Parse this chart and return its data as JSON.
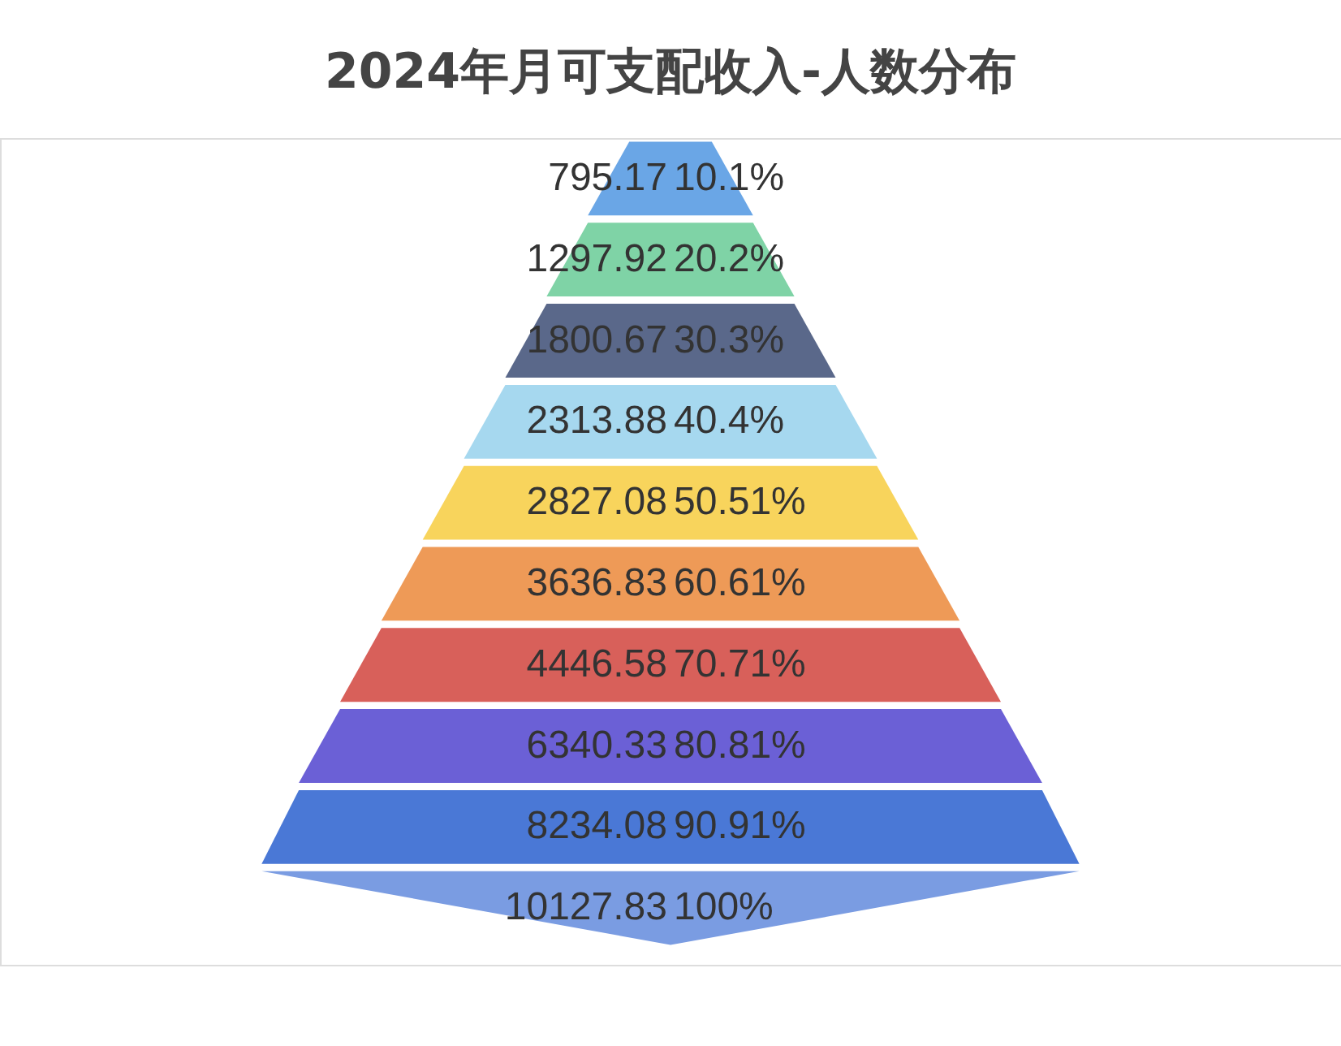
{
  "chart_data": {
    "type": "other",
    "title": "2024年月可支配收入-人数分布",
    "categories": [
      "795.17",
      "1297.92",
      "1800.67",
      "2313.88",
      "2827.08",
      "3636.83",
      "4446.58",
      "6340.33",
      "8234.08",
      "10127.83"
    ],
    "values": [
      10.1,
      20.2,
      30.3,
      40.4,
      50.51,
      60.61,
      70.71,
      80.81,
      90.91,
      100
    ],
    "value_labels": [
      "10.1%",
      "20.2%",
      "30.3%",
      "40.4%",
      "50.51%",
      "60.61%",
      "70.71%",
      "80.81%",
      "90.91%",
      "100%"
    ],
    "colors": [
      "#6aa6e6",
      "#7fd3a6",
      "#5a688a",
      "#a6d8ef",
      "#f8d45c",
      "#ee9a57",
      "#d8605a",
      "#6b60d6",
      "#4a78d6",
      "#7a9ce2"
    ],
    "data_labels": true
  }
}
